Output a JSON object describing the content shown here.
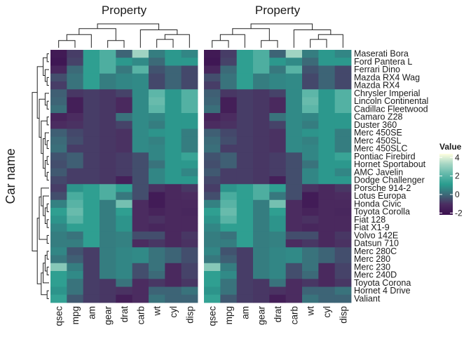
{
  "chart_data": {
    "type": "heatmap",
    "panel_titles": [
      "Property",
      "Property"
    ],
    "ylabel": "Car name",
    "legend": {
      "title": "Value",
      "ticks": [
        4,
        2,
        0,
        -2
      ],
      "range": [
        -2.2,
        4.4
      ],
      "placement": "right",
      "colors": [
        "#3b0f4f",
        "#4b2c60",
        "#3c6a78",
        "#2a9d8f",
        "#62b8aa",
        "#a6d6c4",
        "#ffffe0"
      ]
    },
    "columns": [
      "qsec",
      "mpg",
      "am",
      "gear",
      "drat",
      "carb",
      "wt",
      "cyl",
      "disp"
    ],
    "rows": [
      "Maserati Bora",
      "Ford Pantera L",
      "Ferrari Dino",
      "Mazda RX4 Wag",
      "Mazda RX4",
      "Chrysler Imperial",
      "Lincoln Continental",
      "Cadillac Fleetwood",
      "Camaro Z28",
      "Duster 360",
      "Merc 450SE",
      "Merc 450SL",
      "Merc 450SLC",
      "Pontiac Firebird",
      "Hornet Sportabout",
      "AMC Javelin",
      "Dodge Challenger",
      "Porsche 914-2",
      "Lotus Europa",
      "Honda Civic",
      "Toyota Corolla",
      "Fiat 128",
      "Fiat X1-9",
      "Volvo 142E",
      "Datsun 710",
      "Merc 280C",
      "Merc 280",
      "Merc 230",
      "Merc 240D",
      "Toyota Corona",
      "Hornet 4 Drive",
      "Valiant"
    ],
    "values": [
      [
        -1.8,
        -0.8,
        1.2,
        1.8,
        -0.1,
        3.2,
        0.4,
        1.0,
        0.6
      ],
      [
        -1.9,
        -0.7,
        1.2,
        1.8,
        1.0,
        0.7,
        0.0,
        1.0,
        1.0
      ],
      [
        -1.3,
        0.0,
        1.2,
        1.8,
        0.3,
        2.0,
        -0.4,
        -0.1,
        -0.6
      ],
      [
        -0.5,
        0.2,
        1.2,
        0.4,
        0.6,
        0.7,
        -0.6,
        -0.1,
        -0.6
      ],
      [
        -0.8,
        0.2,
        1.2,
        0.4,
        0.6,
        0.7,
        -0.6,
        -0.1,
        -0.6
      ],
      [
        -0.2,
        -0.9,
        -0.8,
        -0.9,
        -0.7,
        0.7,
        2.1,
        1.0,
        1.9
      ],
      [
        -0.1,
        -1.6,
        -0.8,
        -0.9,
        -1.2,
        0.7,
        2.3,
        1.0,
        1.9
      ],
      [
        0.1,
        -1.6,
        -0.8,
        -0.9,
        -1.2,
        0.7,
        2.1,
        1.0,
        1.9
      ],
      [
        -1.4,
        -1.1,
        -0.8,
        -0.9,
        0.2,
        0.7,
        0.6,
        1.0,
        1.0
      ],
      [
        -1.1,
        -1.0,
        -0.8,
        -0.9,
        -0.7,
        0.7,
        0.4,
        1.0,
        1.0
      ],
      [
        -0.2,
        -0.6,
        -0.8,
        -0.9,
        -1.0,
        0.7,
        0.9,
        1.0,
        0.4
      ],
      [
        0.0,
        -0.5,
        -0.8,
        -0.9,
        -1.0,
        0.7,
        0.5,
        1.0,
        0.4
      ],
      [
        0.1,
        -0.8,
        -0.8,
        -0.9,
        -1.0,
        0.7,
        0.6,
        1.0,
        0.4
      ],
      [
        -0.4,
        -0.2,
        -0.8,
        -0.9,
        -0.8,
        -0.5,
        0.6,
        1.0,
        1.4
      ],
      [
        -0.5,
        -0.2,
        -0.8,
        -0.9,
        -0.8,
        -0.5,
        0.2,
        1.0,
        1.0
      ],
      [
        -0.3,
        -0.8,
        -0.8,
        -0.9,
        -0.8,
        -0.5,
        0.6,
        1.0,
        0.6
      ],
      [
        -0.6,
        -0.8,
        -0.8,
        -0.9,
        -1.5,
        -0.5,
        0.6,
        1.0,
        1.0
      ],
      [
        -0.8,
        0.9,
        1.2,
        1.8,
        1.2,
        -0.5,
        -1.0,
        -1.2,
        -0.9
      ],
      [
        -0.5,
        1.7,
        1.2,
        1.8,
        0.3,
        -0.5,
        -1.7,
        -1.2,
        -1.1
      ],
      [
        0.5,
        2.0,
        1.2,
        0.4,
        2.5,
        -1.1,
        -1.7,
        -1.2,
        -1.2
      ],
      [
        1.2,
        2.3,
        1.2,
        0.4,
        1.2,
        -1.1,
        -1.4,
        -1.2,
        -1.3
      ],
      [
        0.9,
        2.0,
        1.2,
        0.4,
        0.9,
        -1.1,
        -1.0,
        -1.2,
        -1.2
      ],
      [
        0.6,
        1.2,
        1.2,
        0.4,
        0.9,
        -1.1,
        -1.3,
        -1.2,
        -1.2
      ],
      [
        0.4,
        0.2,
        1.2,
        0.4,
        0.5,
        -0.5,
        -0.5,
        -1.2,
        -0.9
      ],
      [
        0.4,
        0.4,
        1.2,
        0.4,
        0.5,
        -1.1,
        -0.9,
        -1.2,
        -1.0
      ],
      [
        0.6,
        -0.4,
        -0.8,
        0.4,
        0.6,
        0.7,
        0.2,
        -0.1,
        -0.5
      ],
      [
        0.3,
        -0.2,
        -0.8,
        0.4,
        0.6,
        0.7,
        0.2,
        -0.1,
        -0.5
      ],
      [
        2.8,
        0.4,
        -0.8,
        0.4,
        0.6,
        -0.5,
        0.2,
        -1.2,
        -0.7
      ],
      [
        1.2,
        0.7,
        -0.8,
        0.4,
        0.6,
        -0.5,
        0.0,
        -1.2,
        -0.7
      ],
      [
        1.2,
        0.2,
        -0.8,
        -0.9,
        0.2,
        -1.1,
        -0.9,
        -1.2,
        -0.9
      ],
      [
        0.9,
        0.2,
        -0.8,
        -0.9,
        -1.0,
        -1.1,
        -0.1,
        -0.1,
        0.2
      ],
      [
        1.3,
        -0.3,
        -0.8,
        -0.9,
        -1.6,
        -1.1,
        0.2,
        -0.1,
        -0.1
      ]
    ],
    "column_dendrogram": [
      [
        0,
        1,
        "A"
      ],
      [
        "A",
        2,
        "B"
      ],
      [
        3,
        4,
        "C"
      ],
      [
        "B",
        "C",
        "D"
      ],
      [
        6,
        7,
        "E"
      ],
      [
        "E",
        8,
        "F"
      ],
      [
        5,
        "F",
        "G"
      ],
      [
        "D",
        "G",
        "H"
      ]
    ],
    "row_dendrogram": [
      [
        3,
        4,
        "r1"
      ],
      [
        2,
        "r1",
        "r2"
      ],
      [
        0,
        1,
        "r3"
      ],
      [
        "r3",
        "r2",
        "r4"
      ],
      [
        6,
        7,
        "r5"
      ],
      [
        5,
        "r5",
        "r6"
      ],
      [
        8,
        9,
        "r7"
      ],
      [
        11,
        12,
        "r8"
      ],
      [
        10,
        "r8",
        "r9"
      ],
      [
        13,
        14,
        "r10"
      ],
      [
        15,
        16,
        "r11"
      ],
      [
        "r10",
        "r11",
        "r12"
      ],
      [
        "r9",
        "r12",
        "r13"
      ],
      [
        "r7",
        "r13",
        "r14"
      ],
      [
        "r6",
        "r14",
        "r15"
      ],
      [
        "r4",
        "r15",
        "r16"
      ],
      [
        19,
        20,
        "r17"
      ],
      [
        21,
        22,
        "r18"
      ],
      [
        "r17",
        "r18",
        "r19"
      ],
      [
        18,
        "r19",
        "r20"
      ],
      [
        17,
        "r20",
        "r21"
      ],
      [
        23,
        24,
        "r22"
      ],
      [
        "r21",
        "r22",
        "r23"
      ],
      [
        25,
        26,
        "r24"
      ],
      [
        27,
        28,
        "r25"
      ],
      [
        "r24",
        "r25",
        "r26"
      ],
      [
        29,
        "r26",
        "r27"
      ],
      [
        30,
        31,
        "r28"
      ],
      [
        "r27",
        "r28",
        "r29"
      ],
      [
        "r23",
        "r29",
        "r30"
      ],
      [
        "r16",
        "r30",
        "r31"
      ]
    ]
  }
}
